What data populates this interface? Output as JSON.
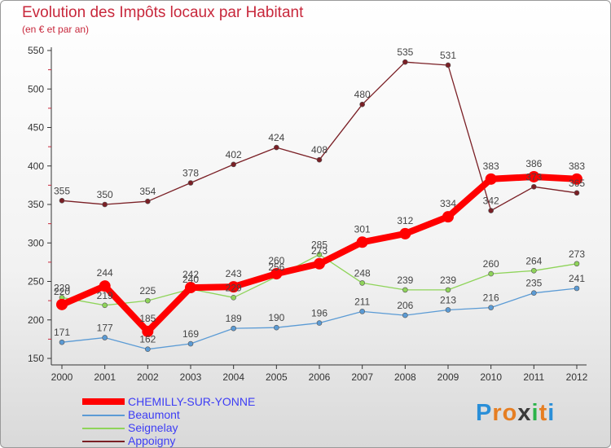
{
  "title": "Evolution des Impôts locaux par Habitant",
  "subtitle": "(en € et par an)",
  "logo": {
    "text": "Proxiti",
    "letters": [
      "P",
      "r",
      "o",
      "x",
      "i",
      "t",
      "i"
    ],
    "colors": [
      "#2a8fd8",
      "#e67e22",
      "#e67e22",
      "#3a3a3a",
      "#2bb34a",
      "#e67e22",
      "#2a8fd8"
    ]
  },
  "chart_data": {
    "type": "line",
    "x": [
      "2000",
      "2001",
      "2002",
      "2003",
      "2004",
      "2005",
      "2006",
      "2007",
      "2008",
      "2009",
      "2010",
      "2011",
      "2012"
    ],
    "ylim": [
      150,
      550
    ],
    "yticks": [
      "150",
      "200",
      "250",
      "300",
      "350",
      "400",
      "450",
      "500",
      "550"
    ],
    "grid": false,
    "legend": "bottom-left",
    "series": [
      {
        "name": "Appoigny",
        "color": "#7a1f25",
        "values": [
          355,
          350,
          354,
          378,
          402,
          424,
          408,
          480,
          535,
          531,
          342,
          373,
          365
        ],
        "labels": [
          "355",
          "350",
          "354",
          "378",
          "402",
          "424",
          "408",
          "480",
          "535",
          "531",
          "342",
          "373",
          "365"
        ]
      },
      {
        "name": "Seignelay",
        "color": "#8fd45a",
        "values": [
          229,
          219,
          225,
          240,
          229,
          256,
          285,
          248,
          239,
          239,
          260,
          264,
          273
        ],
        "labels": [
          "229",
          "219",
          "225",
          "240",
          "229",
          "256",
          "285",
          "248",
          "239",
          "239",
          "260",
          "264",
          "273"
        ]
      },
      {
        "name": "Beaumont",
        "color": "#5b9bd5",
        "values": [
          171,
          177,
          162,
          169,
          189,
          190,
          196,
          211,
          206,
          213,
          216,
          235,
          241
        ],
        "labels": [
          "171",
          "177",
          "162",
          "169",
          "189",
          "190",
          "196",
          "211",
          "206",
          "213",
          "216",
          "235",
          "241"
        ]
      },
      {
        "name": "CHEMILLY-SUR-YONNE",
        "color": "#ff0000",
        "values": [
          220,
          244,
          185,
          242,
          243,
          260,
          273,
          301,
          312,
          334,
          383,
          386,
          383
        ],
        "labels": [
          "220",
          "244",
          "185",
          "242",
          "243",
          "260",
          "273",
          "301",
          "312",
          "334",
          "383",
          "386",
          "383"
        ]
      }
    ],
    "legend_order": [
      "CHEMILLY-SUR-YONNE",
      "Beaumont",
      "Seignelay",
      "Appoigny"
    ]
  }
}
